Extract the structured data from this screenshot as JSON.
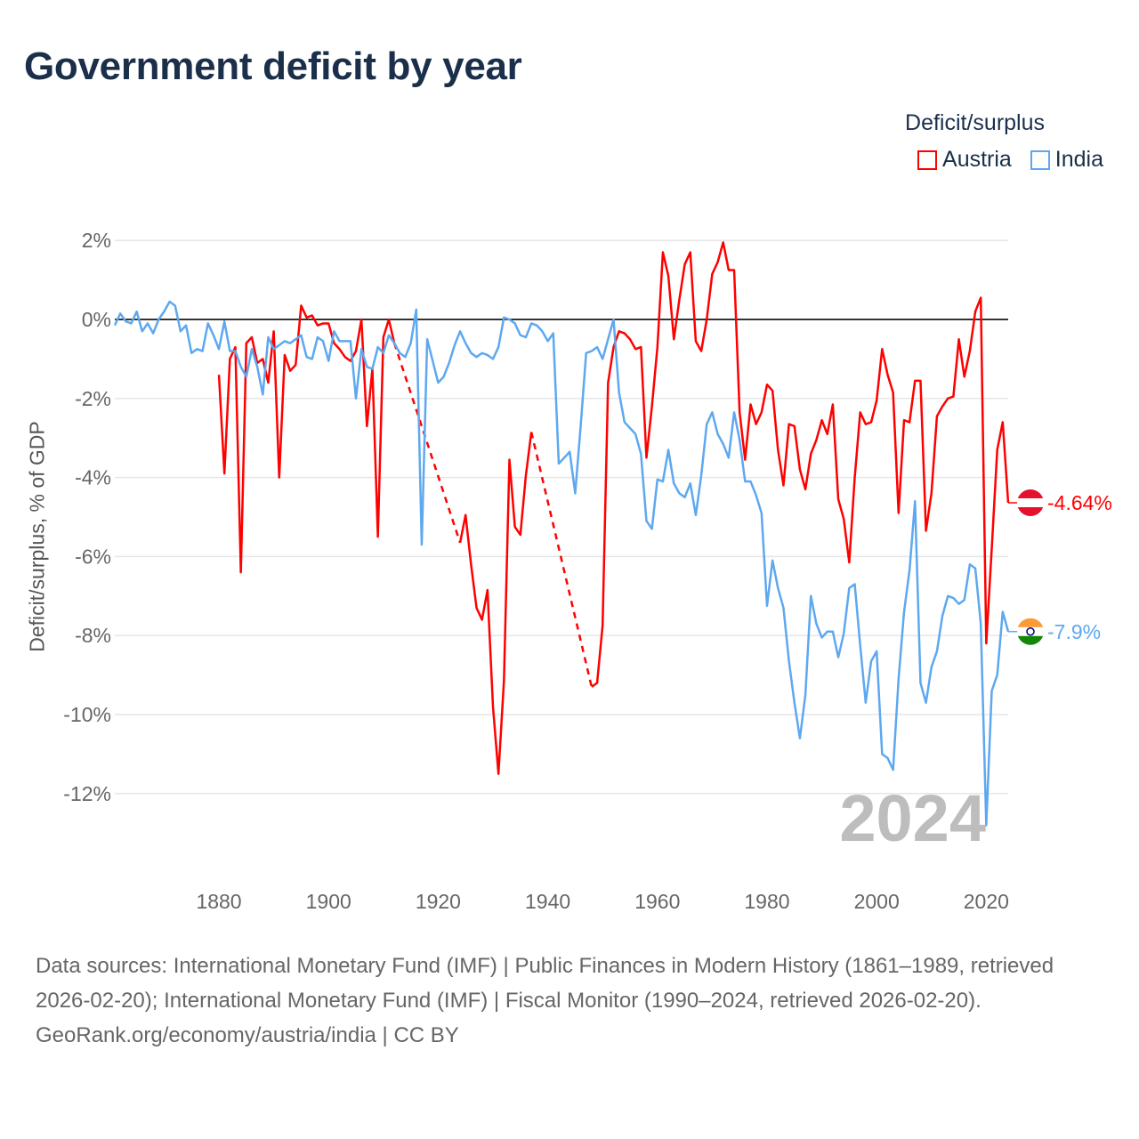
{
  "title": "Government deficit by year",
  "legend": {
    "title": "Deficit/surplus",
    "items": [
      {
        "name": "Austria",
        "color": "#ff0000"
      },
      {
        "name": "India",
        "color": "#5da8f0"
      }
    ]
  },
  "footer": {
    "sources": "Data sources: International Monetary Fund (IMF) | Public Finances in Modern History (1861–1989, retrieved 2026-02-20); International Monetary Fund (IMF) | Fiscal Monitor (1990–2024, retrieved 2026-02-20).",
    "credit": "GeoRank.org/economy/austria/india | CC BY"
  },
  "chart_data": {
    "type": "line",
    "title": "Government deficit by year",
    "xlabel": "",
    "ylabel": "Deficit/surplus, % of GDP",
    "xlim": [
      1861,
      2024
    ],
    "ylim": [
      -12.8,
      2
    ],
    "x_ticks": [
      1880,
      1900,
      1920,
      1940,
      1960,
      1980,
      2000,
      2020
    ],
    "x_tick_labels": [
      "1880",
      "1900",
      "1920",
      "1940",
      "1960",
      "1980",
      "2000",
      "2020"
    ],
    "y_ticks": [
      2,
      0,
      -2,
      -4,
      -6,
      -8,
      -10,
      -12
    ],
    "y_tick_labels": [
      "2%",
      "0%",
      "-2%",
      "-4%",
      "-6%",
      "-8%",
      "-10%",
      "-12%"
    ],
    "grid": true,
    "legend_position": "top-right",
    "watermark_year": "2024",
    "series": [
      {
        "name": "Austria",
        "color": "#ff0000",
        "start_year": 1880,
        "end_label": "-4.64%",
        "values": [
          -1.4,
          -3.9,
          -1.0,
          -0.7,
          -6.4,
          -0.6,
          -0.45,
          -1.1,
          -1.0,
          -1.6,
          -0.3,
          -4.0,
          -0.9,
          -1.3,
          -1.15,
          0.35,
          0.05,
          0.1,
          -0.15,
          -0.1,
          -0.1,
          -0.6,
          -0.75,
          -0.95,
          -1.05,
          -0.8,
          0.0,
          -2.7,
          -1.25,
          -5.5,
          -0.45,
          0.0,
          -0.6,
          null,
          null,
          null,
          null,
          null,
          null,
          null,
          null,
          null,
          null,
          null,
          -5.65,
          -4.95,
          -6.2,
          -7.3,
          -7.6,
          -6.85,
          -9.8,
          -11.5,
          -9.15,
          -3.55,
          -5.25,
          -5.45,
          -3.95,
          -2.85,
          null,
          null,
          null,
          null,
          null,
          null,
          null,
          null,
          null,
          null,
          -9.3,
          -9.2,
          -7.75,
          -1.6,
          -0.7,
          -0.3,
          -0.35,
          -0.5,
          -0.75,
          -0.7,
          -3.5,
          -2.2,
          -0.7,
          1.7,
          1.1,
          -0.5,
          0.5,
          1.4,
          1.7,
          -0.55,
          -0.8,
          0.0,
          1.15,
          1.45,
          1.95,
          1.25,
          1.25,
          -2.35,
          -3.55,
          -2.15,
          -2.65,
          -2.35,
          -1.65,
          -1.8,
          -3.3,
          -4.2,
          -2.65,
          -2.7,
          -3.8,
          -4.3,
          -3.4,
          -3.05,
          -2.55,
          -2.9,
          -2.15,
          -4.55,
          -5.05,
          -6.15,
          -4.0,
          -2.35,
          -2.65,
          -2.6,
          -2.05,
          -0.75,
          -1.4,
          -1.85,
          -4.9,
          -2.55,
          -2.6,
          -1.55,
          -1.55,
          -5.35,
          -4.4,
          -2.45,
          -2.2,
          -2.0,
          -1.95,
          -0.5,
          -1.45,
          -0.8,
          0.2,
          0.55,
          -8.2,
          -5.8,
          -3.3,
          -2.6,
          -4.64
        ]
      },
      {
        "name": "India",
        "color": "#5da8f0",
        "start_year": 1861,
        "end_label": "-7.9%",
        "values": [
          -0.15,
          0.15,
          -0.05,
          -0.1,
          0.2,
          -0.3,
          -0.1,
          -0.35,
          0.0,
          0.2,
          0.45,
          0.35,
          -0.3,
          -0.15,
          -0.85,
          -0.75,
          -0.8,
          -0.1,
          -0.4,
          -0.75,
          -0.05,
          -0.8,
          -0.8,
          -1.2,
          -1.45,
          -0.75,
          -1.2,
          -1.9,
          -0.45,
          -0.75,
          -0.65,
          -0.55,
          -0.6,
          -0.5,
          -0.4,
          -0.95,
          -1.0,
          -0.45,
          -0.55,
          -1.05,
          -0.3,
          -0.55,
          -0.55,
          -0.55,
          -2.0,
          -0.75,
          -1.2,
          -1.25,
          -0.7,
          -0.85,
          -0.4,
          -0.6,
          -0.85,
          -0.95,
          -0.6,
          0.25,
          -5.7,
          -0.5,
          -1.05,
          -1.6,
          -1.45,
          -1.1,
          -0.65,
          -0.3,
          -0.6,
          -0.85,
          -0.95,
          -0.85,
          -0.9,
          -1.0,
          -0.7,
          0.05,
          0.0,
          -0.1,
          -0.4,
          -0.45,
          -0.1,
          -0.15,
          -0.3,
          -0.55,
          -0.35,
          -3.65,
          -3.5,
          -3.35,
          -4.4,
          -2.7,
          -0.85,
          -0.8,
          -0.7,
          -1.0,
          -0.5,
          0.0,
          -1.85,
          -2.6,
          -2.75,
          -2.9,
          -3.4,
          -5.1,
          -5.3,
          -4.05,
          -4.1,
          -3.3,
          -4.15,
          -4.4,
          -4.5,
          -4.15,
          -4.95,
          -3.95,
          -2.65,
          -2.35,
          -2.9,
          -3.15,
          -3.5,
          -2.35,
          -3.05,
          -4.1,
          -4.1,
          -4.45,
          -4.9,
          -7.25,
          -6.1,
          -6.8,
          -7.3,
          -8.65,
          -9.7,
          -10.6,
          -9.5,
          -7.0,
          -7.7,
          -8.05,
          -7.9,
          -7.9,
          -8.55,
          -7.95,
          -6.8,
          -6.7,
          -8.25,
          -9.7,
          -8.65,
          -8.4,
          -11.0,
          -11.1,
          -11.4,
          -9.1,
          -7.4,
          -6.35,
          -4.6,
          -9.2,
          -9.7,
          -8.8,
          -8.4,
          -7.5,
          -7.0,
          -7.05,
          -7.2,
          -7.1,
          -6.2,
          -6.3,
          -7.7,
          -12.8,
          -9.4,
          -9.0,
          -7.4,
          -7.9
        ]
      }
    ]
  }
}
